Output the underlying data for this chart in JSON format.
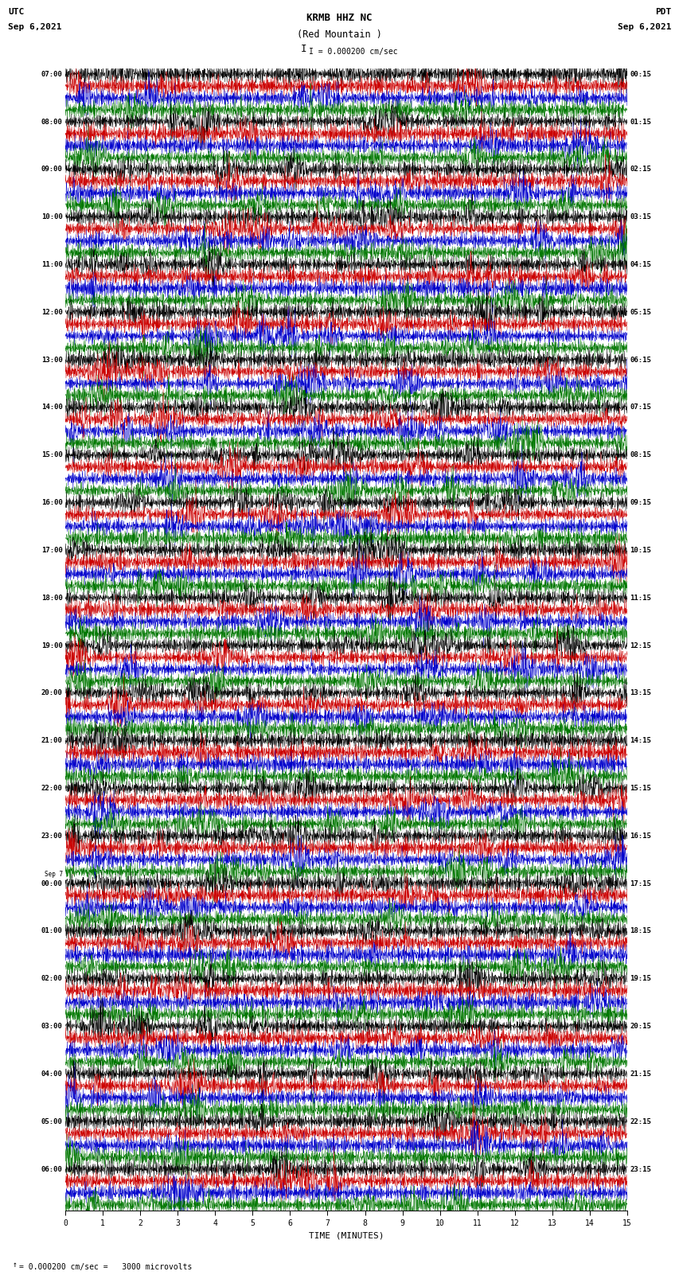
{
  "title_line1": "KRMB HHZ NC",
  "title_line2": "(Red Mountain )",
  "scale_label": "I = 0.000200 cm/sec",
  "left_header_line1": "UTC",
  "left_header_line2": "Sep 6,2021",
  "right_header_line1": "PDT",
  "right_header_line2": "Sep 6,2021",
  "bottom_label": "TIME (MINUTES)",
  "bottom_note": "= 0.000200 cm/sec =   3000 microvolts",
  "fig_width": 8.5,
  "fig_height": 16.13,
  "left_times": [
    "07:00",
    "08:00",
    "09:00",
    "10:00",
    "11:00",
    "12:00",
    "13:00",
    "14:00",
    "15:00",
    "16:00",
    "17:00",
    "18:00",
    "19:00",
    "20:00",
    "21:00",
    "22:00",
    "23:00",
    "Sep 7-00:00",
    "01:00",
    "02:00",
    "03:00",
    "04:00",
    "05:00",
    "06:00"
  ],
  "right_times": [
    "00:15",
    "01:15",
    "02:15",
    "03:15",
    "04:15",
    "05:15",
    "06:15",
    "07:15",
    "08:15",
    "09:15",
    "10:15",
    "11:15",
    "12:15",
    "13:15",
    "14:15",
    "15:15",
    "16:15",
    "17:15",
    "18:15",
    "19:15",
    "20:15",
    "21:15",
    "22:15",
    "23:15"
  ],
  "trace_color_black": "#000000",
  "trace_color_red": "#cc0000",
  "trace_color_blue": "#0000cc",
  "trace_color_green": "#007700",
  "bg_color": "#ffffff",
  "num_hour_blocks": 24,
  "traces_per_block": 4,
  "n_points": 2000
}
